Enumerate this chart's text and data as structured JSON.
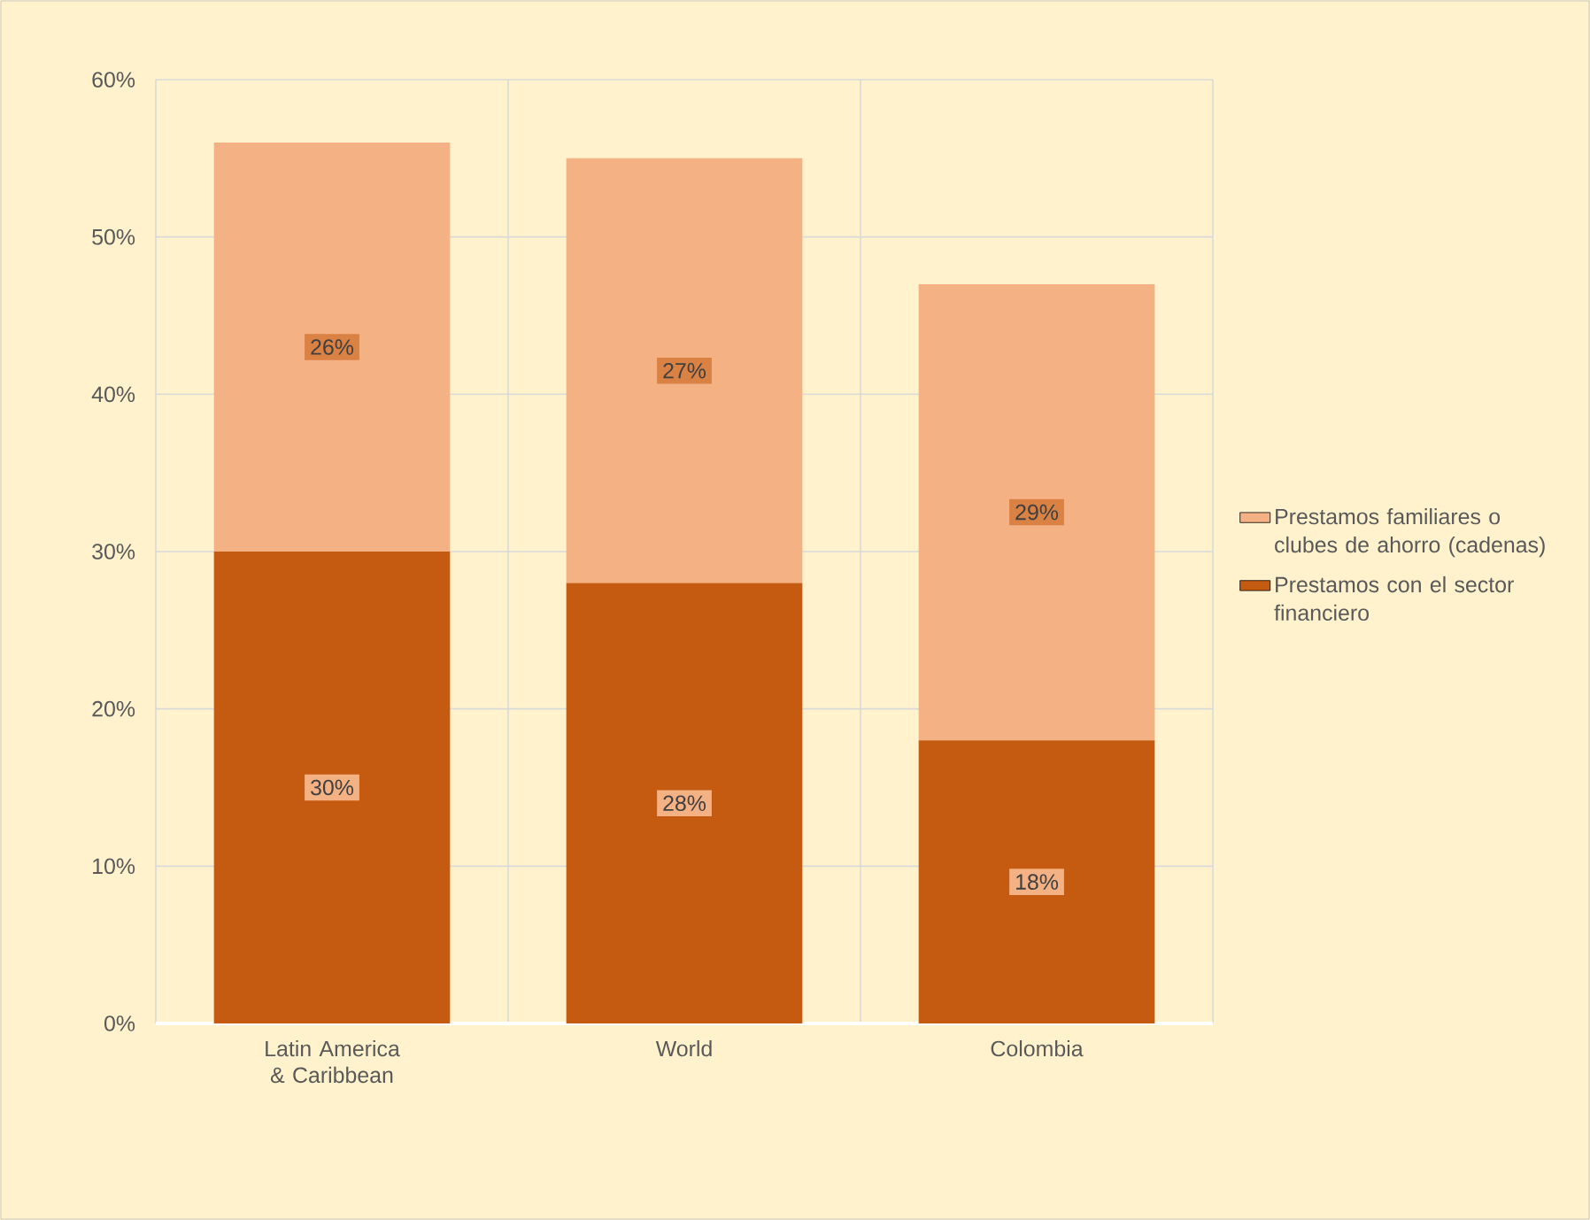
{
  "chart_data": {
    "type": "bar",
    "stacked": true,
    "categories": [
      "Latin America & Caribbean",
      "World",
      "Colombia"
    ],
    "series": [
      {
        "name": "Prestamos con el sector financiero",
        "color": "#c55a11",
        "values": [
          30,
          28,
          18
        ],
        "value_labels": [
          "30%",
          "28%",
          "18%"
        ]
      },
      {
        "name": "Prestamos familiares o clubes de ahorro (cadenas)",
        "color": "#f4b183",
        "values": [
          26,
          27,
          29
        ],
        "value_labels": [
          "26%",
          "27%",
          "29%"
        ]
      }
    ],
    "ylim": [
      0,
      60
    ],
    "yticks": [
      {
        "value": 0,
        "label": "0%"
      },
      {
        "value": 10,
        "label": "10%"
      },
      {
        "value": 20,
        "label": "20%"
      },
      {
        "value": 30,
        "label": "30%"
      },
      {
        "value": 40,
        "label": "40%"
      },
      {
        "value": 50,
        "label": "50%"
      },
      {
        "value": 60,
        "label": "60%"
      }
    ],
    "grid": true,
    "legend": "right"
  }
}
